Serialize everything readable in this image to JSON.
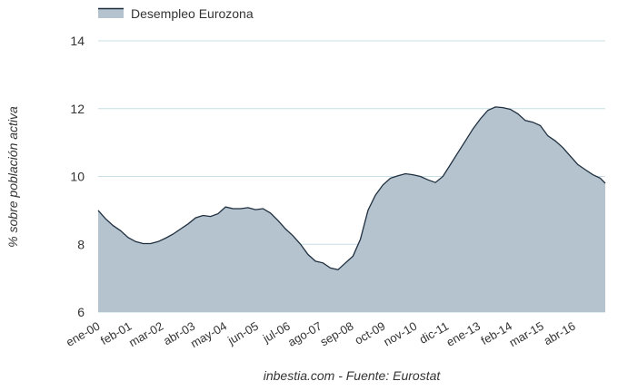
{
  "chart_data": {
    "type": "area",
    "legend": {
      "label": "Desempleo Eurozona",
      "position": "top-left"
    },
    "ylabel": "% sobre población activa",
    "xlabel": "inbestia.com - Fuente: Eurostat",
    "ylim": [
      6,
      14
    ],
    "yticks": [
      6,
      8,
      10,
      12,
      14
    ],
    "grid": true,
    "colors": {
      "fill": "#b5c3cf",
      "line": "#1f2f3f"
    },
    "x_start": "2000-01",
    "x_end": "2016-12",
    "xtick_labels": [
      "ene-00",
      "feb-01",
      "mar-02",
      "abr-03",
      "may-04",
      "jun-05",
      "jul-06",
      "ago-07",
      "sep-08",
      "oct-09",
      "nov-10",
      "dic-11",
      "ene-13",
      "feb-14",
      "mar-15",
      "abr-16"
    ],
    "series": [
      {
        "name": "Desempleo Eurozona",
        "points": [
          [
            "2000-01",
            9.0
          ],
          [
            "2000-04",
            8.75
          ],
          [
            "2000-07",
            8.55
          ],
          [
            "2000-10",
            8.4
          ],
          [
            "2001-01",
            8.2
          ],
          [
            "2001-04",
            8.08
          ],
          [
            "2001-07",
            8.02
          ],
          [
            "2001-10",
            8.02
          ],
          [
            "2002-01",
            8.08
          ],
          [
            "2002-04",
            8.18
          ],
          [
            "2002-07",
            8.3
          ],
          [
            "2002-10",
            8.45
          ],
          [
            "2003-01",
            8.6
          ],
          [
            "2003-04",
            8.78
          ],
          [
            "2003-07",
            8.85
          ],
          [
            "2003-10",
            8.82
          ],
          [
            "2004-01",
            8.9
          ],
          [
            "2004-04",
            9.1
          ],
          [
            "2004-07",
            9.05
          ],
          [
            "2004-10",
            9.05
          ],
          [
            "2005-01",
            9.08
          ],
          [
            "2005-04",
            9.02
          ],
          [
            "2005-07",
            9.05
          ],
          [
            "2005-10",
            8.92
          ],
          [
            "2006-01",
            8.7
          ],
          [
            "2006-04",
            8.45
          ],
          [
            "2006-07",
            8.25
          ],
          [
            "2006-10",
            8.0
          ],
          [
            "2007-01",
            7.7
          ],
          [
            "2007-04",
            7.5
          ],
          [
            "2007-07",
            7.45
          ],
          [
            "2007-10",
            7.3
          ],
          [
            "2008-01",
            7.25
          ],
          [
            "2008-04",
            7.45
          ],
          [
            "2008-07",
            7.65
          ],
          [
            "2008-10",
            8.15
          ],
          [
            "2009-01",
            9.0
          ],
          [
            "2009-04",
            9.45
          ],
          [
            "2009-07",
            9.75
          ],
          [
            "2009-10",
            9.95
          ],
          [
            "2010-01",
            10.02
          ],
          [
            "2010-04",
            10.08
          ],
          [
            "2010-07",
            10.05
          ],
          [
            "2010-10",
            10.0
          ],
          [
            "2011-01",
            9.9
          ],
          [
            "2011-04",
            9.82
          ],
          [
            "2011-07",
            10.0
          ],
          [
            "2011-10",
            10.35
          ],
          [
            "2012-01",
            10.7
          ],
          [
            "2012-04",
            11.05
          ],
          [
            "2012-07",
            11.4
          ],
          [
            "2012-10",
            11.7
          ],
          [
            "2013-01",
            11.95
          ],
          [
            "2013-04",
            12.05
          ],
          [
            "2013-07",
            12.03
          ],
          [
            "2013-10",
            11.98
          ],
          [
            "2014-01",
            11.85
          ],
          [
            "2014-04",
            11.65
          ],
          [
            "2014-07",
            11.6
          ],
          [
            "2014-10",
            11.5
          ],
          [
            "2015-01",
            11.2
          ],
          [
            "2015-04",
            11.05
          ],
          [
            "2015-07",
            10.85
          ],
          [
            "2015-10",
            10.6
          ],
          [
            "2016-01",
            10.35
          ],
          [
            "2016-04",
            10.2
          ],
          [
            "2016-07",
            10.05
          ],
          [
            "2016-10",
            9.95
          ],
          [
            "2016-12",
            9.8
          ]
        ]
      }
    ]
  }
}
